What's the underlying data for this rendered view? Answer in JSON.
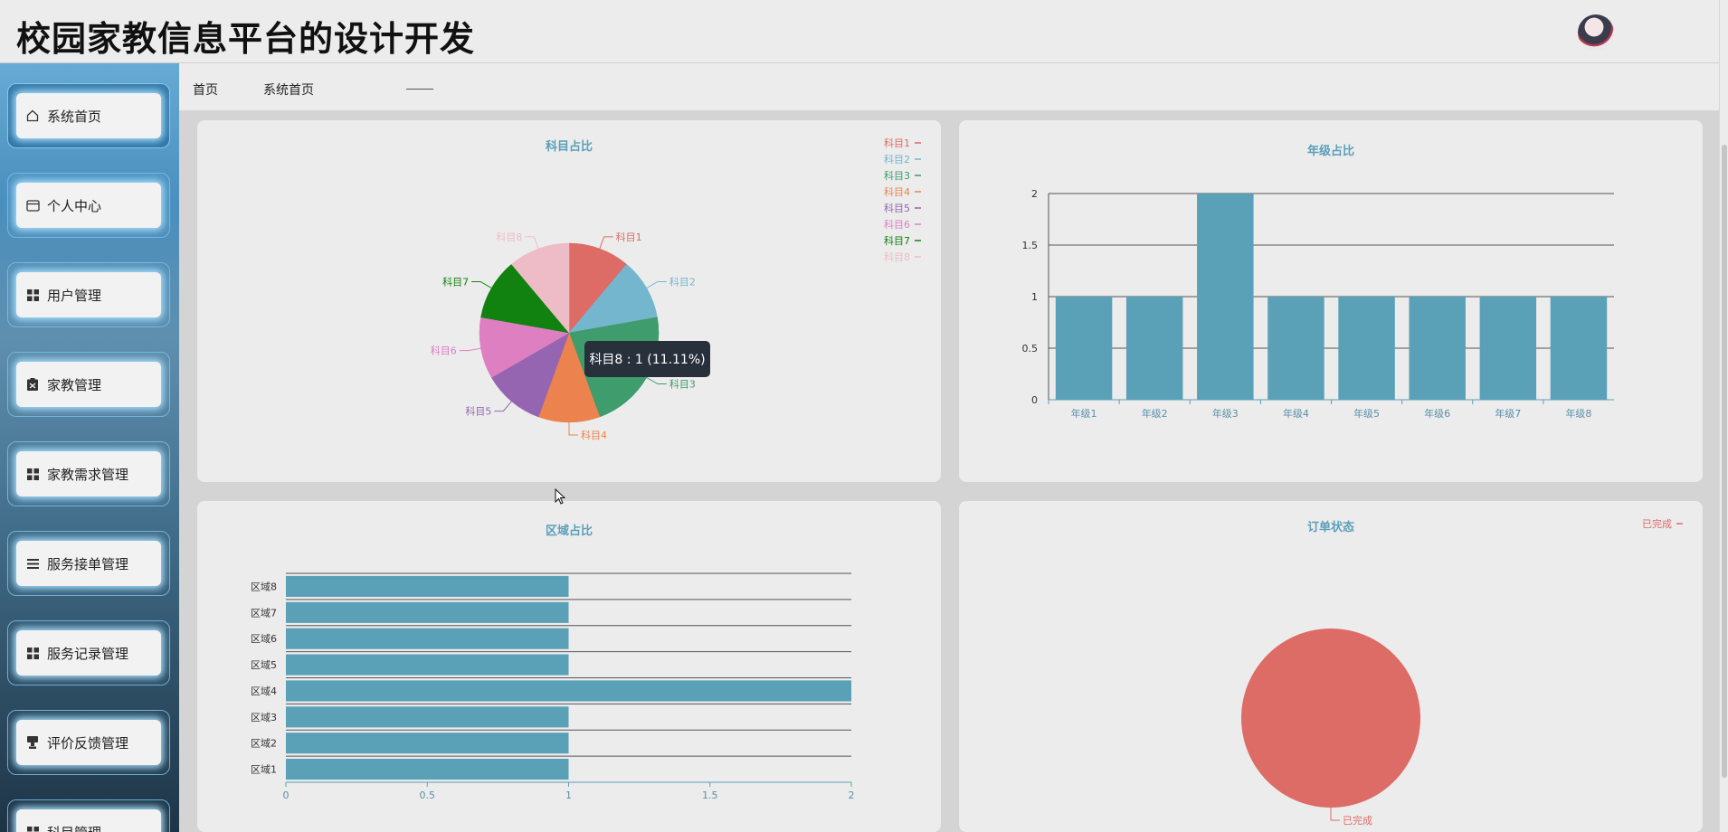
{
  "header": {
    "title": "校园家教信息平台的设计开发"
  },
  "breadcrumb": {
    "home": "首页",
    "current": "系统首页"
  },
  "sidebar": {
    "items": [
      {
        "label": "系统首页",
        "icon": "home-icon"
      },
      {
        "label": "个人中心",
        "icon": "card-icon"
      },
      {
        "label": "用户管理",
        "icon": "grid-icon"
      },
      {
        "label": "家教管理",
        "icon": "clipboard-icon"
      },
      {
        "label": "家教需求管理",
        "icon": "grid-icon"
      },
      {
        "label": "服务接单管理",
        "icon": "list-icon"
      },
      {
        "label": "服务记录管理",
        "icon": "grid-icon"
      },
      {
        "label": "评价反馈管理",
        "icon": "stamp-icon"
      },
      {
        "label": "科目管理",
        "icon": "grid-icon"
      }
    ]
  },
  "tooltip": {
    "text": "科目8 : 1 (11.11%)"
  },
  "chart_data": [
    {
      "type": "pie",
      "title": "科目占比",
      "categories": [
        "科目1",
        "科目2",
        "科目3",
        "科目4",
        "科目5",
        "科目6",
        "科目7",
        "科目8"
      ],
      "values": [
        1,
        1,
        2,
        1,
        1,
        1,
        1,
        1
      ],
      "colors": [
        "#dd6b66",
        "#75b6cf",
        "#3f9c6c",
        "#ec834f",
        "#9565b1",
        "#dd7fc1",
        "#11810f",
        "#eebcc6"
      ],
      "legend": "top-right"
    },
    {
      "type": "bar",
      "title": "年级占比",
      "categories": [
        "年级1",
        "年级2",
        "年级3",
        "年级4",
        "年级5",
        "年级6",
        "年级7",
        "年级8"
      ],
      "values": [
        1,
        1,
        2,
        1,
        1,
        1,
        1,
        1
      ],
      "ylim": [
        0,
        2
      ],
      "yticks": [
        "0",
        "0.5",
        "1",
        "1.5",
        "2"
      ],
      "color": "#5aa1b8",
      "grid": true
    },
    {
      "type": "bar",
      "orientation": "horizontal",
      "title": "区域占比",
      "categories": [
        "区域1",
        "区域2",
        "区域3",
        "区域4",
        "区域5",
        "区域6",
        "区域7",
        "区域8"
      ],
      "values": [
        1,
        1,
        1,
        2,
        1,
        1,
        1,
        1
      ],
      "xlim": [
        0,
        2
      ],
      "xticks": [
        "0",
        "0.5",
        "1",
        "1.5",
        "2"
      ],
      "color": "#5aa1b8",
      "grid": true
    },
    {
      "type": "pie",
      "title": "订单状态",
      "categories": [
        "已完成"
      ],
      "values": [
        1
      ],
      "colors": [
        "#dd6b66"
      ],
      "legend": "top-right"
    }
  ]
}
